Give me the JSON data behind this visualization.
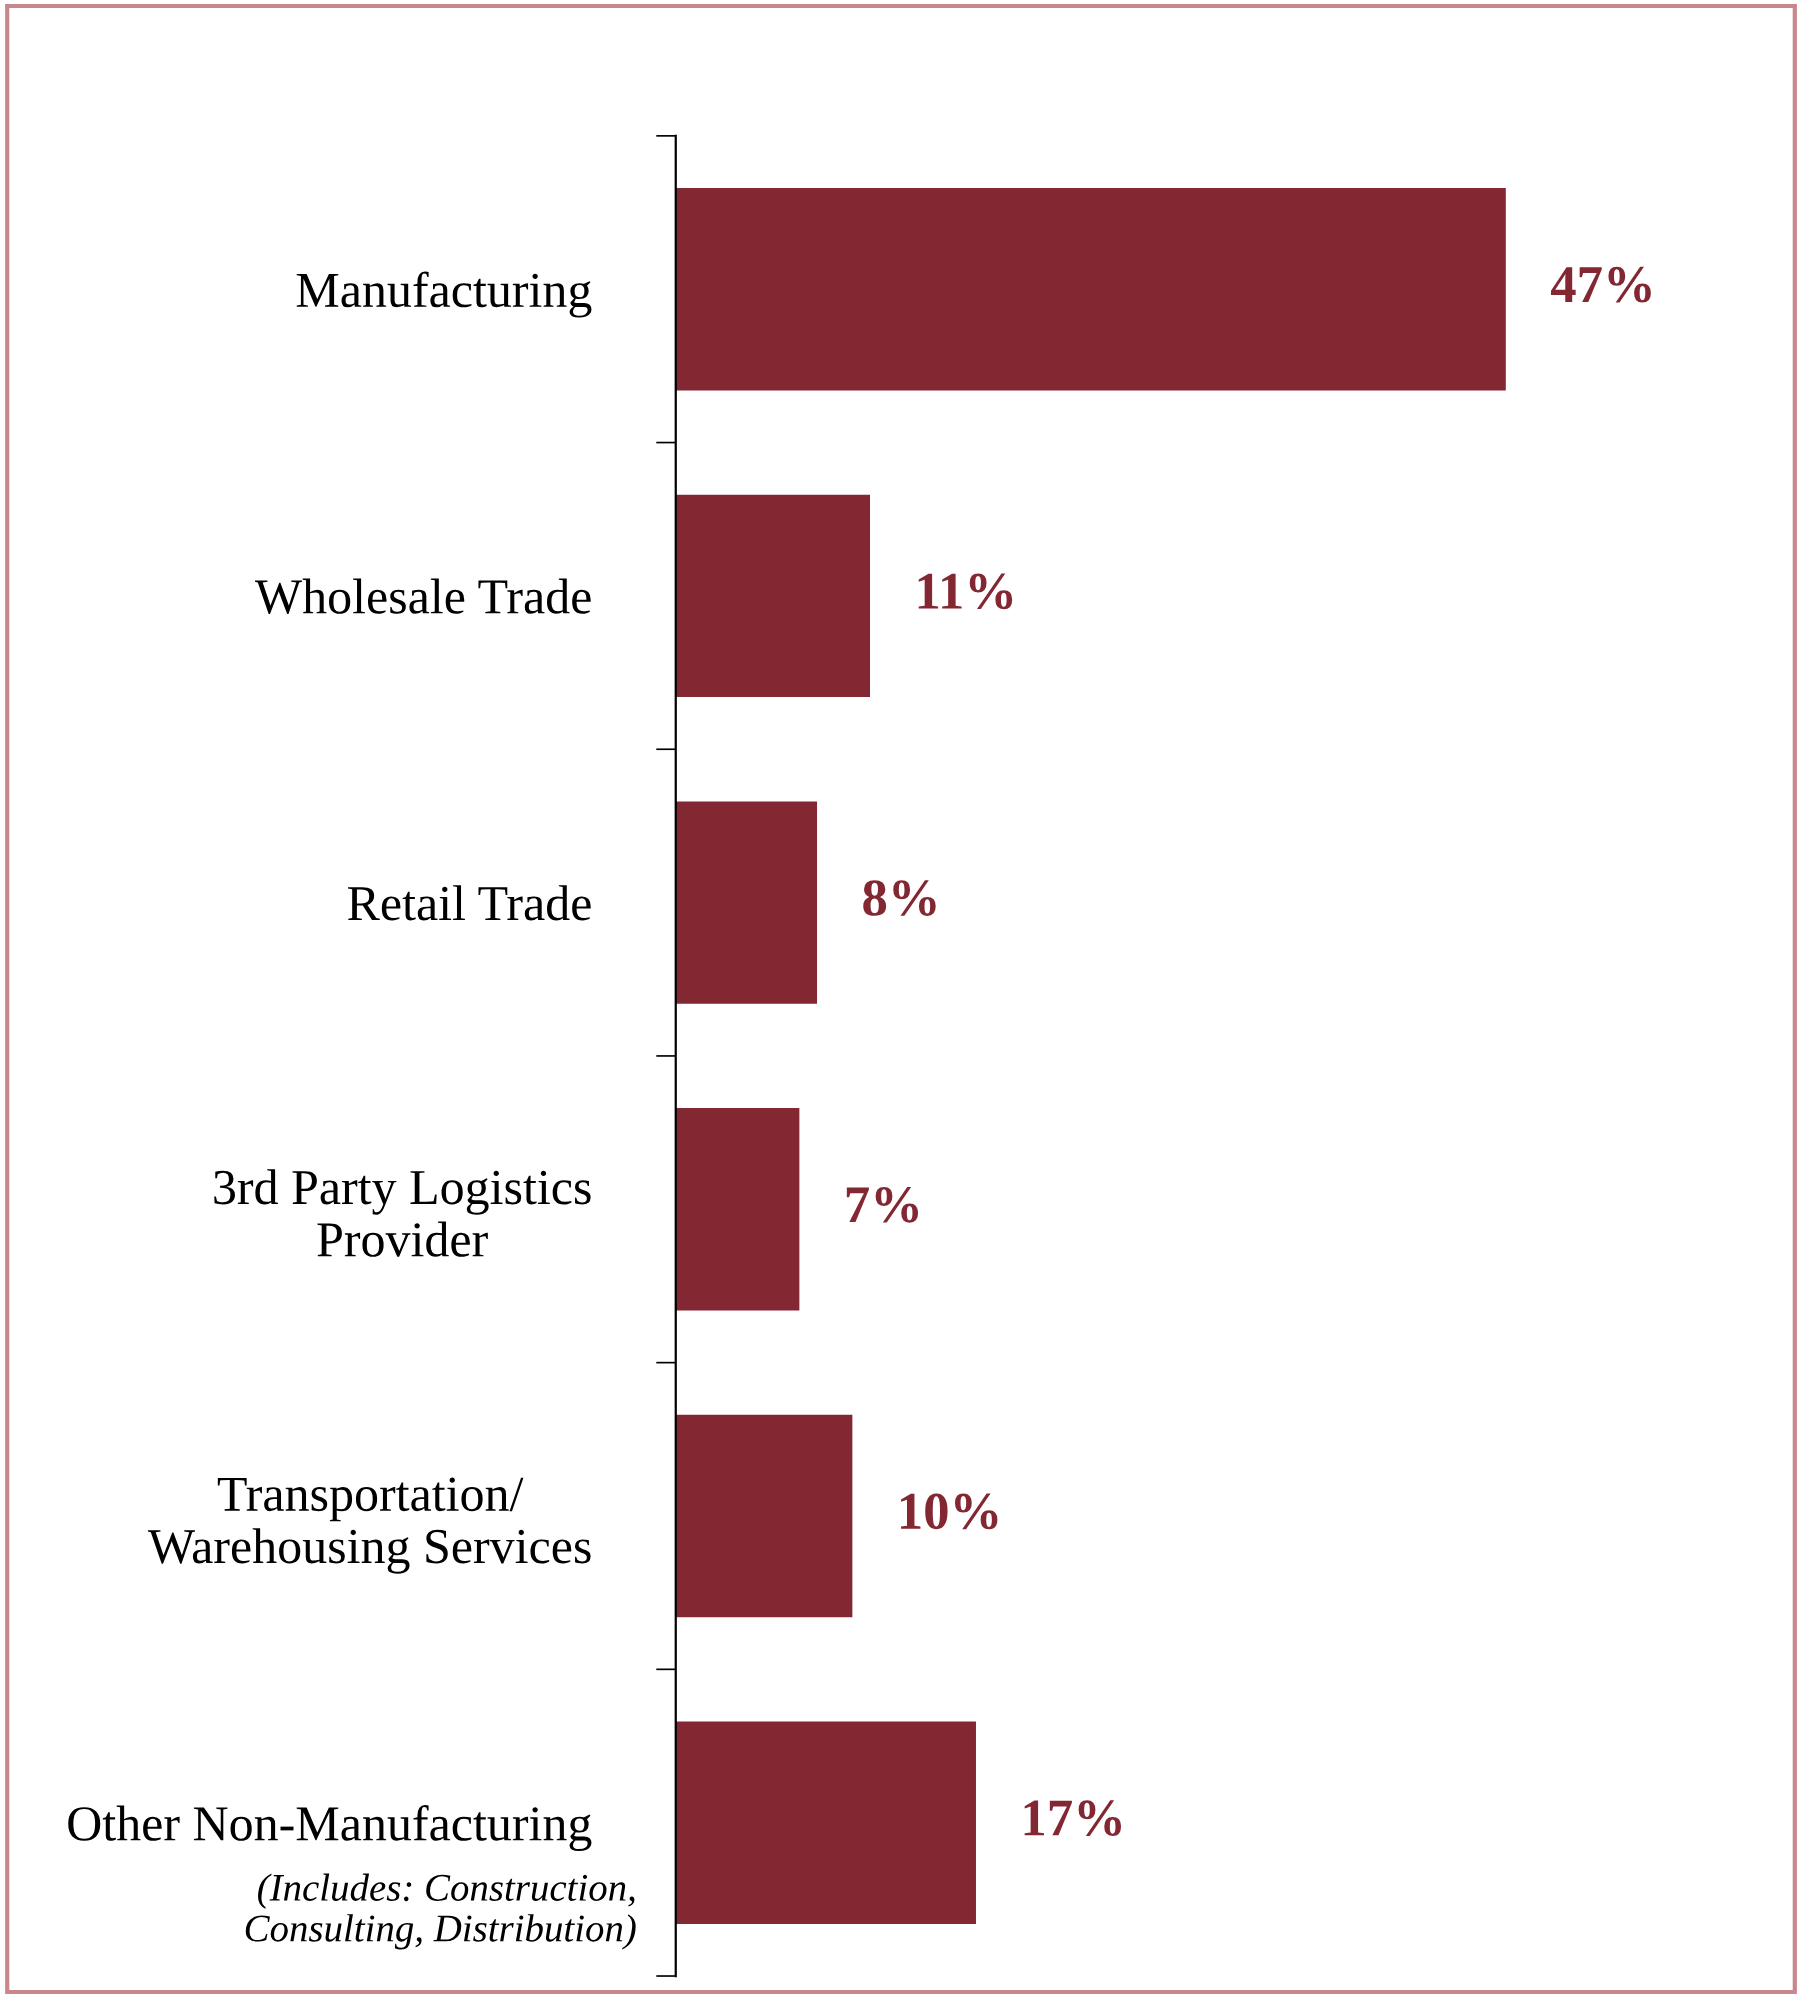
{
  "chart_data": {
    "type": "bar",
    "orientation": "horizontal",
    "categories": [
      "Manufacturing",
      "Wholesale Trade",
      "Retail Trade",
      "3rd Party Logistics\nProvider",
      "Transportation/\nWarehousing Services",
      "Other Non-Manufacturing"
    ],
    "values": [
      47,
      11,
      8,
      7,
      10,
      17
    ],
    "color": "#832833",
    "value_labels": [
      "47%",
      "11%",
      "8%",
      "7%",
      "10%",
      "17%"
    ],
    "tick_labels": "y",
    "grid": false,
    "legend": false,
    "annotations": [
      "(Includes: Construction,\nConsulting, Distribution)"
    ]
  }
}
